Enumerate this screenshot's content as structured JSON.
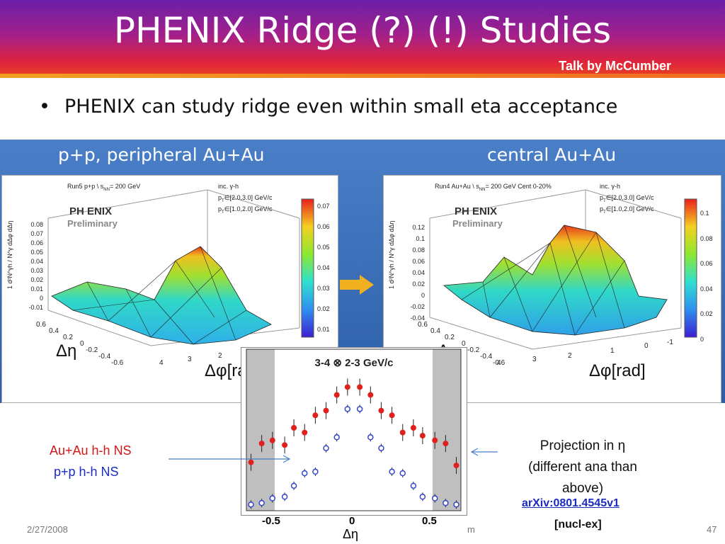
{
  "slide": {
    "title": "PHENIX Ridge (?) (!) Studies",
    "subtitle": "Talk by McCumber",
    "bullet": "PHENIX can study ridge even within small eta acceptance"
  },
  "left_panel": {
    "header": "p+p, peripheral Au+Au",
    "info_line1": "Run5 p+p   \\ s",
    "info_sub": "NN",
    "info_val": "= 200 GeV",
    "inc": "inc. γ-h",
    "cut1": "∈[2.0,3.0] GeV/c",
    "cut2": "∈[1.0,2.0] GeV/c",
    "logo": "PH   ENIX",
    "prelim": "Preliminary",
    "z_ticks": [
      "0.08",
      "0.07",
      "0.06",
      "0.05",
      "0.04",
      "0.03",
      "0.02",
      "0.01",
      "0",
      "-0.01"
    ],
    "colorbar_ticks": [
      "0.07",
      "0.06",
      "0.05",
      "0.04",
      "0.03",
      "0.02",
      "0.01"
    ],
    "eta_ticks": [
      "0.6",
      "0.4",
      "0.2",
      "0",
      "-0.2",
      "-0.4",
      "-0.6"
    ],
    "eta_label": "Δη",
    "phi_label": "Δφ[ra",
    "phi_ticks": [
      "4",
      "3",
      "2"
    ]
  },
  "right_panel": {
    "header": "central Au+Au",
    "info_line1": "Run4 Au+Au   \\ s",
    "info_sub": "NN",
    "info_val": "= 200 GeV  Cent 0-20%",
    "inc": "inc. γ-h",
    "cut1": "∈[2.0,3.0] GeV/c",
    "cut2": "∈[1.0,2.0] GeV/c",
    "logo": "PH   ENIX",
    "prelim": "Preliminary",
    "z_ticks": [
      "0.12",
      "0.1",
      "0.08",
      "0.06",
      "0.04",
      "0.02",
      "0",
      "-0.02",
      "-0.04"
    ],
    "colorbar_ticks": [
      "0.1",
      "0.08",
      "0.06",
      "0.04",
      "0.02",
      "0"
    ],
    "eta_ticks": [
      "0.6",
      "0.4",
      "0.2",
      "0",
      "-0.2",
      "-0.4",
      "-0.6"
    ],
    "eta_label": "Δη",
    "phi_label": "Δφ[rad]",
    "phi_ticks": [
      "4",
      "3",
      "2",
      "1",
      "0",
      "-1"
    ]
  },
  "zaxis_label": "1   d²N^γh / N^γ dΔφ dΔη",
  "projection": {
    "title": "3-4 ⊗ 2-3 GeV/c",
    "x_ticks": [
      "-0.5",
      "0",
      "0.5"
    ],
    "x_label": "Δη"
  },
  "labels": {
    "auau": "Au+Au  h-h  NS",
    "pp": "p+p  h-h NS",
    "proj_line1": "Projection in η",
    "proj_line2": "(different ana than",
    "proj_line3": "above)",
    "arxiv": "arXiv:0801.4545v1",
    "nucl": "[nucl-ex]"
  },
  "footer": {
    "date": "2/27/2008",
    "mid": "m",
    "page": "47"
  },
  "chart_data": {
    "type": "scatter",
    "title": "3-4 ⊗ 2-3 GeV/c",
    "xlabel": "Δη",
    "ylabel": "",
    "xlim": [
      -0.7,
      0.7
    ],
    "series": [
      {
        "name": "Au+Au  h-h  NS",
        "color": "#e0201c",
        "x": [
          -0.67,
          -0.6,
          -0.53,
          -0.45,
          -0.39,
          -0.32,
          -0.25,
          -0.18,
          -0.11,
          -0.04,
          0.04,
          0.11,
          0.18,
          0.25,
          0.32,
          0.39,
          0.45,
          0.53,
          0.6,
          0.67
        ],
        "y": [
          0.3,
          0.42,
          0.44,
          0.41,
          0.52,
          0.49,
          0.6,
          0.63,
          0.73,
          0.78,
          0.78,
          0.73,
          0.63,
          0.6,
          0.49,
          0.52,
          0.47,
          0.44,
          0.42,
          0.28
        ]
      },
      {
        "name": "p+p  h-h NS",
        "color": "#3344cc",
        "x": [
          -0.67,
          -0.6,
          -0.53,
          -0.45,
          -0.39,
          -0.32,
          -0.25,
          -0.18,
          -0.11,
          -0.04,
          0.04,
          0.11,
          0.18,
          0.25,
          0.32,
          0.39,
          0.45,
          0.53,
          0.6,
          0.67
        ],
        "y": [
          0.03,
          0.04,
          0.07,
          0.08,
          0.15,
          0.23,
          0.24,
          0.39,
          0.46,
          0.64,
          0.64,
          0.46,
          0.39,
          0.24,
          0.23,
          0.15,
          0.08,
          0.07,
          0.04,
          0.03
        ]
      }
    ]
  },
  "colors": {
    "title_bg_top": "#6b1fa8",
    "title_bg_bottom": "#e8461f",
    "panel_blue": "#3a6db8",
    "red_marker": "#e0201c",
    "blue_marker": "#3344cc",
    "arrow": "#f0b020"
  }
}
